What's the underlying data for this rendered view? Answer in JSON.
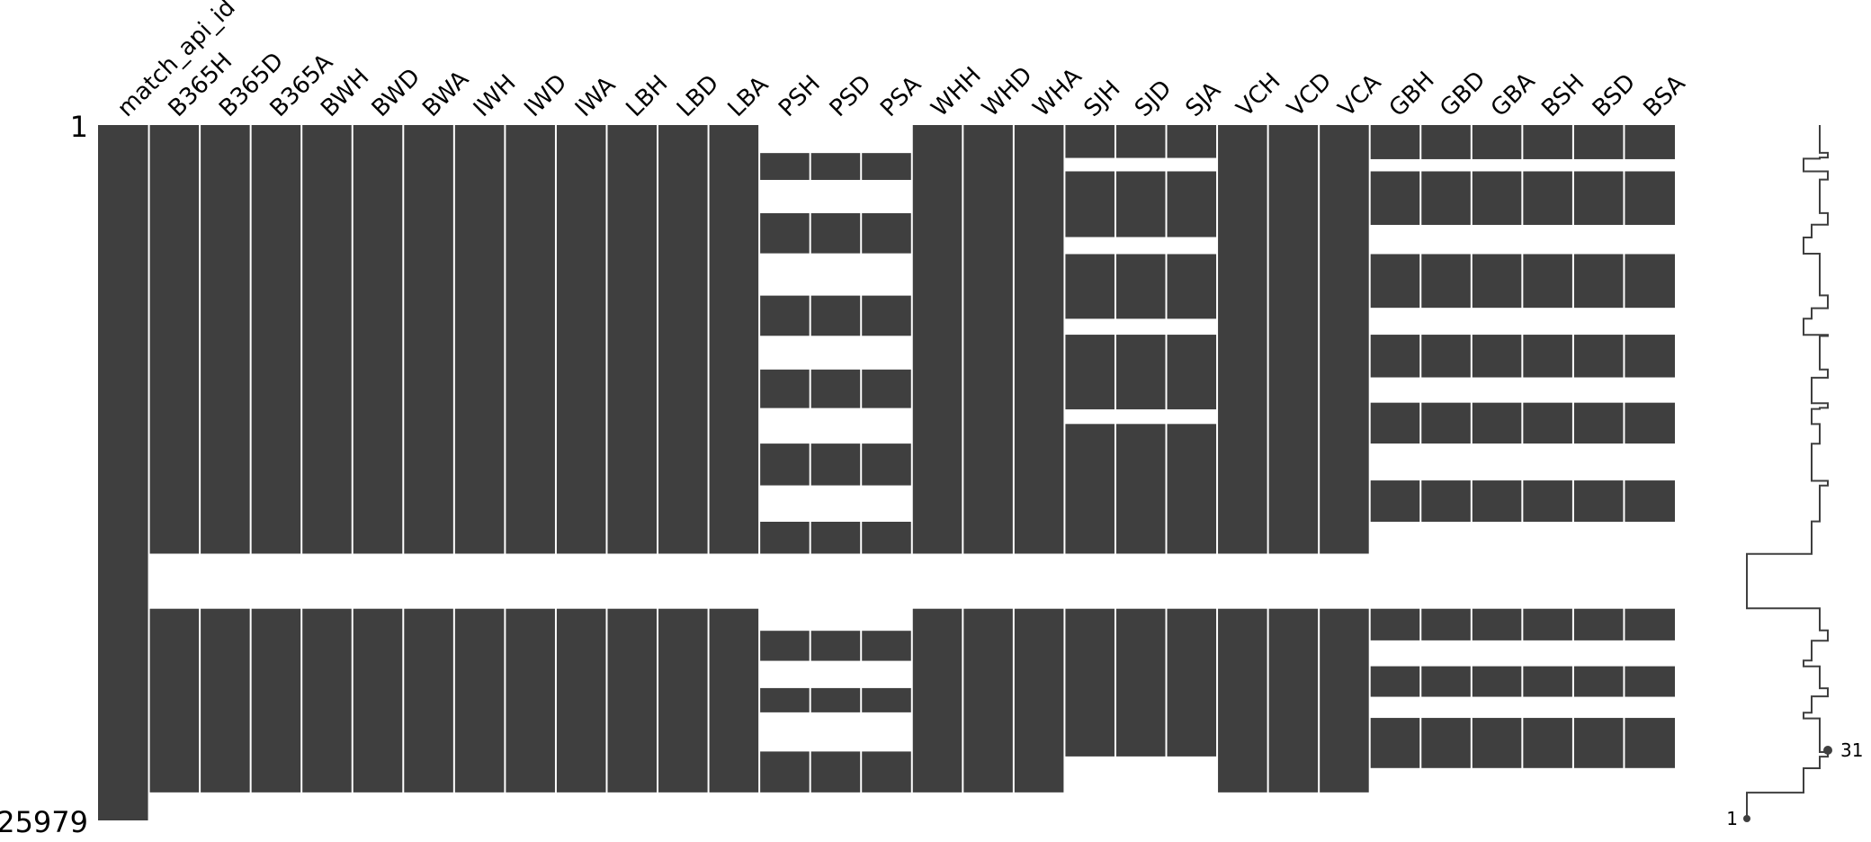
{
  "chart_data": {
    "type": "missingness-matrix",
    "row_count": 25979,
    "row_label_top": "1",
    "row_label_bottom": "25979",
    "fill_color": "#3f3f3f",
    "gap_color": "#ffffff",
    "columns": [
      {
        "name": "match_api_id",
        "filled": [
          [
            0,
            1
          ]
        ]
      },
      {
        "name": "B365H",
        "filled": [
          [
            0,
            0.6164
          ],
          [
            0.6956,
            0.9597
          ]
        ]
      },
      {
        "name": "B365D",
        "filled": [
          [
            0,
            0.6164
          ],
          [
            0.6956,
            0.9597
          ]
        ]
      },
      {
        "name": "B365A",
        "filled": [
          [
            0,
            0.6164
          ],
          [
            0.6956,
            0.9597
          ]
        ]
      },
      {
        "name": "BWH",
        "filled": [
          [
            0,
            0.6164
          ],
          [
            0.6956,
            0.9597
          ]
        ]
      },
      {
        "name": "BWD",
        "filled": [
          [
            0,
            0.6164
          ],
          [
            0.6956,
            0.9597
          ]
        ]
      },
      {
        "name": "BWA",
        "filled": [
          [
            0,
            0.6164
          ],
          [
            0.6956,
            0.9597
          ]
        ]
      },
      {
        "name": "IWH",
        "filled": [
          [
            0,
            0.6164
          ],
          [
            0.6956,
            0.9597
          ]
        ]
      },
      {
        "name": "IWD",
        "filled": [
          [
            0,
            0.6164
          ],
          [
            0.6956,
            0.9597
          ]
        ]
      },
      {
        "name": "IWA",
        "filled": [
          [
            0,
            0.6164
          ],
          [
            0.6956,
            0.9597
          ]
        ]
      },
      {
        "name": "LBH",
        "filled": [
          [
            0,
            0.6164
          ],
          [
            0.6956,
            0.9597
          ]
        ]
      },
      {
        "name": "LBD",
        "filled": [
          [
            0,
            0.6164
          ],
          [
            0.6956,
            0.9597
          ]
        ]
      },
      {
        "name": "LBA",
        "filled": [
          [
            0,
            0.6164
          ],
          [
            0.6956,
            0.9597
          ]
        ]
      },
      {
        "name": "PSH",
        "filled": [
          [
            0.0403,
            0.0789
          ],
          [
            0.1268,
            0.1845
          ],
          [
            0.2453,
            0.3031
          ],
          [
            0.3516,
            0.407
          ],
          [
            0.4581,
            0.5182
          ],
          [
            0.5705,
            0.6164
          ],
          [
            0.7273,
            0.7705
          ],
          [
            0.8097,
            0.8446
          ],
          [
            0.9009,
            0.9597
          ]
        ]
      },
      {
        "name": "PSD",
        "filled": [
          [
            0.0403,
            0.0789
          ],
          [
            0.1268,
            0.1845
          ],
          [
            0.2453,
            0.3031
          ],
          [
            0.3516,
            0.407
          ],
          [
            0.4581,
            0.5182
          ],
          [
            0.5705,
            0.6164
          ],
          [
            0.7273,
            0.7705
          ],
          [
            0.8097,
            0.8446
          ],
          [
            0.9009,
            0.9597
          ]
        ]
      },
      {
        "name": "PSA",
        "filled": [
          [
            0.0403,
            0.0789
          ],
          [
            0.1268,
            0.1845
          ],
          [
            0.2453,
            0.3031
          ],
          [
            0.3516,
            0.407
          ],
          [
            0.4581,
            0.5182
          ],
          [
            0.5705,
            0.6164
          ],
          [
            0.7273,
            0.7705
          ],
          [
            0.8097,
            0.8446
          ],
          [
            0.9009,
            0.9597
          ]
        ]
      },
      {
        "name": "WHH",
        "filled": [
          [
            0,
            0.6164
          ],
          [
            0.6956,
            0.9597
          ]
        ]
      },
      {
        "name": "WHD",
        "filled": [
          [
            0,
            0.6164
          ],
          [
            0.6956,
            0.9597
          ]
        ]
      },
      {
        "name": "WHA",
        "filled": [
          [
            0,
            0.6164
          ],
          [
            0.6956,
            0.9597
          ]
        ]
      },
      {
        "name": "SJH",
        "filled": [
          [
            0,
            0.0473
          ],
          [
            0.0666,
            0.1611
          ],
          [
            0.1856,
            0.2786
          ],
          [
            0.3015,
            0.4089
          ],
          [
            0.4299,
            0.6164
          ],
          [
            0.6956,
            0.908
          ]
        ]
      },
      {
        "name": "SJD",
        "filled": [
          [
            0,
            0.0473
          ],
          [
            0.0666,
            0.1611
          ],
          [
            0.1856,
            0.2786
          ],
          [
            0.3015,
            0.4089
          ],
          [
            0.4299,
            0.6164
          ],
          [
            0.6956,
            0.908
          ]
        ]
      },
      {
        "name": "SJA",
        "filled": [
          [
            0,
            0.0473
          ],
          [
            0.0666,
            0.1611
          ],
          [
            0.1856,
            0.2786
          ],
          [
            0.3015,
            0.4089
          ],
          [
            0.4299,
            0.6164
          ],
          [
            0.6956,
            0.908
          ]
        ]
      },
      {
        "name": "VCH",
        "filled": [
          [
            0,
            0.6164
          ],
          [
            0.6956,
            0.9597
          ]
        ]
      },
      {
        "name": "VCD",
        "filled": [
          [
            0,
            0.6164
          ],
          [
            0.6956,
            0.9597
          ]
        ]
      },
      {
        "name": "VCA",
        "filled": [
          [
            0,
            0.6164
          ],
          [
            0.6956,
            0.9597
          ]
        ]
      },
      {
        "name": "GBH",
        "filled": [
          [
            0,
            0.0491
          ],
          [
            0.0666,
            0.1436
          ],
          [
            0.1856,
            0.2628
          ],
          [
            0.3015,
            0.3629
          ],
          [
            0.3993,
            0.458
          ],
          [
            0.5111,
            0.5705
          ],
          [
            0.6956,
            0.7411
          ],
          [
            0.7783,
            0.8222
          ],
          [
            0.8526,
            0.9247
          ]
        ]
      },
      {
        "name": "GBD",
        "filled": [
          [
            0,
            0.0491
          ],
          [
            0.0666,
            0.1436
          ],
          [
            0.1856,
            0.2628
          ],
          [
            0.3015,
            0.3629
          ],
          [
            0.3993,
            0.458
          ],
          [
            0.5111,
            0.5705
          ],
          [
            0.6956,
            0.7411
          ],
          [
            0.7783,
            0.8222
          ],
          [
            0.8526,
            0.9247
          ]
        ]
      },
      {
        "name": "GBA",
        "filled": [
          [
            0,
            0.0491
          ],
          [
            0.0666,
            0.1436
          ],
          [
            0.1856,
            0.2628
          ],
          [
            0.3015,
            0.3629
          ],
          [
            0.3993,
            0.458
          ],
          [
            0.5111,
            0.5705
          ],
          [
            0.6956,
            0.7411
          ],
          [
            0.7783,
            0.8222
          ],
          [
            0.8526,
            0.9247
          ]
        ]
      },
      {
        "name": "BSH",
        "filled": [
          [
            0,
            0.0491
          ],
          [
            0.0666,
            0.1436
          ],
          [
            0.1856,
            0.2628
          ],
          [
            0.3015,
            0.3629
          ],
          [
            0.3993,
            0.458
          ],
          [
            0.5111,
            0.5705
          ],
          [
            0.6956,
            0.7411
          ],
          [
            0.7783,
            0.8222
          ],
          [
            0.8526,
            0.9247
          ]
        ]
      },
      {
        "name": "BSD",
        "filled": [
          [
            0,
            0.0491
          ],
          [
            0.0666,
            0.1436
          ],
          [
            0.1856,
            0.2628
          ],
          [
            0.3015,
            0.3629
          ],
          [
            0.3993,
            0.458
          ],
          [
            0.5111,
            0.5705
          ],
          [
            0.6956,
            0.7411
          ],
          [
            0.7783,
            0.8222
          ],
          [
            0.8526,
            0.9247
          ]
        ]
      },
      {
        "name": "BSA",
        "filled": [
          [
            0,
            0.0491
          ],
          [
            0.0666,
            0.1436
          ],
          [
            0.1856,
            0.2628
          ],
          [
            0.3015,
            0.3629
          ],
          [
            0.3993,
            0.458
          ],
          [
            0.5111,
            0.5705
          ],
          [
            0.6956,
            0.7411
          ],
          [
            0.7783,
            0.8222
          ],
          [
            0.8526,
            0.9247
          ]
        ]
      }
    ],
    "sparkline": {
      "min_label": "1",
      "max_label": "31",
      "min_value": 1,
      "max_value": 31
    }
  }
}
